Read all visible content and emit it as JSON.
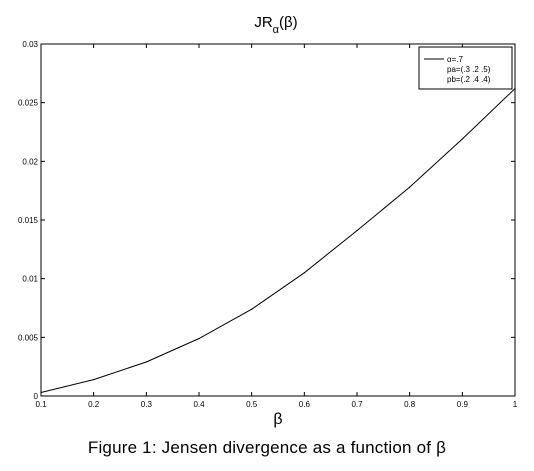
{
  "chart_data": {
    "type": "line",
    "title": {
      "main": "JR",
      "subscript": "α",
      "suffix": "(β)"
    },
    "xlabel": "β",
    "ylabel": "",
    "xlim": [
      0.1,
      1
    ],
    "ylim": [
      0,
      0.03
    ],
    "x_ticks": [
      "0.1",
      "0.2",
      "0.3",
      "0.4",
      "0.5",
      "0.6",
      "0.7",
      "0.8",
      "0.9",
      "1"
    ],
    "y_ticks": [
      "0",
      "0.005",
      "0.01",
      "0.015",
      "0.02",
      "0.025",
      "0.03"
    ],
    "grid": false,
    "legend_position": "top-right",
    "legend": [
      "α=.7",
      "pa=(.3 .2 .5)",
      "pb=(.2 .4 .4)"
    ],
    "series": [
      {
        "x": [
          0.1,
          0.2,
          0.3,
          0.4,
          0.5,
          0.6,
          0.7,
          0.8,
          0.9,
          1.0
        ],
        "values": [
          0.0003,
          0.0014,
          0.0029,
          0.0049,
          0.0074,
          0.0105,
          0.0141,
          0.0178,
          0.0219,
          0.0262
        ]
      }
    ]
  },
  "caption": "Figure 1:   Jensen divergence as a function of β"
}
